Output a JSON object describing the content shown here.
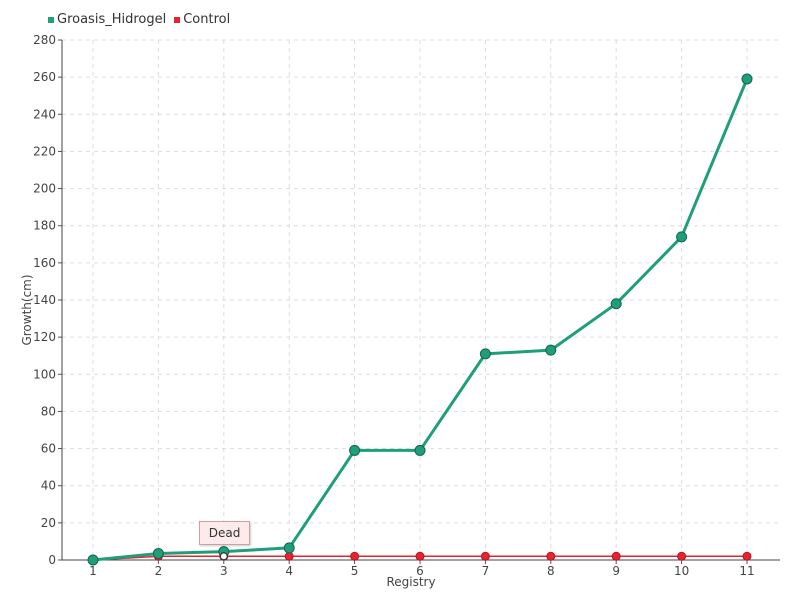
{
  "chart_data": {
    "type": "line",
    "xlabel": "Registry",
    "ylabel": "Growth(cm)",
    "x": [
      1,
      2,
      3,
      4,
      5,
      6,
      7,
      8,
      9,
      10,
      11
    ],
    "ylim": [
      0,
      280
    ],
    "yticks": [
      0,
      20,
      40,
      60,
      80,
      100,
      120,
      140,
      160,
      180,
      200,
      220,
      240,
      260,
      280
    ],
    "grid": true,
    "legend_position": "top-left",
    "series": [
      {
        "name": "Groasis_Hidrogel",
        "color": "#1f9e7a",
        "values": [
          0,
          3.5,
          4.5,
          6.5,
          59,
          59,
          111,
          113,
          138,
          174,
          259
        ]
      },
      {
        "name": "Control",
        "color": "#e8232e",
        "values": [
          0,
          2,
          2,
          2,
          2,
          2,
          2,
          2,
          2,
          2,
          2
        ]
      }
    ],
    "annotation": {
      "text": "Dead",
      "series": "Control",
      "x": 3
    }
  }
}
